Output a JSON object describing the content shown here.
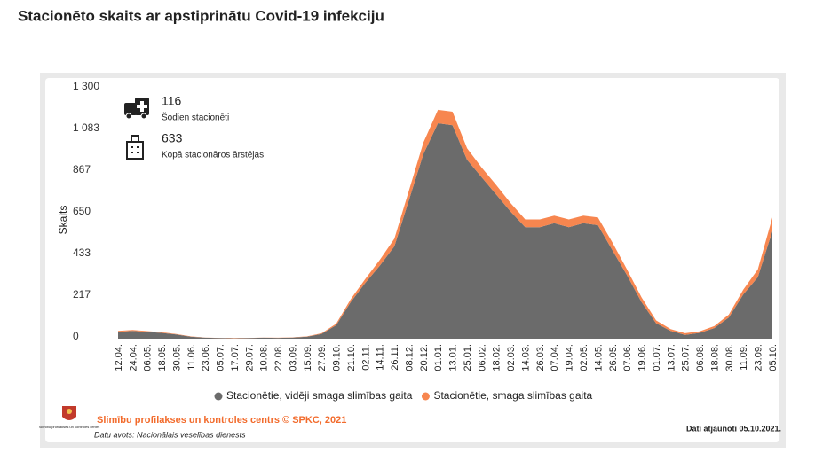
{
  "title": "Stacionēto skaits ar apstiprinātu Covid-19 infekciju",
  "info": [
    {
      "value": "116",
      "label": "Šodien stacionēti"
    },
    {
      "value": "633",
      "label": "Kopā stacionāros ārstējas"
    }
  ],
  "footer": {
    "org": "Slimību profilakses un kontroles centrs © SPKC, 2021",
    "logo_text": "Slimību profilakses un kontroles centrs",
    "source": "Datu avots: Nacionālais veselības dienests",
    "updated": "Dati atjaunoti 05.10.2021."
  },
  "chart_data": {
    "type": "area",
    "stacked": true,
    "y_label": "Skaits",
    "grid": false,
    "categories": [
      "12.04.",
      "24.04.",
      "06.05.",
      "18.05.",
      "30.05.",
      "11.06.",
      "23.06.",
      "05.07.",
      "17.07.",
      "29.07.",
      "10.08.",
      "22.08.",
      "03.09.",
      "15.09.",
      "27.09.",
      "09.10.",
      "21.10.",
      "02.11.",
      "14.11.",
      "26.11.",
      "08.12.",
      "20.12.",
      "01.01.",
      "13.01.",
      "25.01.",
      "06.02.",
      "18.02.",
      "02.03.",
      "14.03.",
      "26.03.",
      "07.04.",
      "19.04.",
      "02.05.",
      "14.05.",
      "26.05.",
      "07.06.",
      "19.06.",
      "01.07.",
      "13.07.",
      "25.07.",
      "06.08.",
      "18.08.",
      "30.08.",
      "11.09.",
      "23.09.",
      "05.10."
    ],
    "series": [
      {
        "name": "Stacionētie, vidēji smaga slimības gaita",
        "color": "#6b6b6b",
        "values": [
          35,
          40,
          35,
          30,
          22,
          10,
          5,
          3,
          2,
          3,
          5,
          4,
          6,
          10,
          25,
          70,
          190,
          290,
          380,
          480,
          720,
          960,
          1120,
          1110,
          930,
          840,
          750,
          660,
          580,
          580,
          600,
          580,
          600,
          590,
          460,
          330,
          190,
          80,
          40,
          20,
          30,
          55,
          110,
          230,
          320,
          560
        ]
      },
      {
        "name": "Stacionētie, smaga slimības gaita",
        "color": "#f7864f",
        "values": [
          5,
          5,
          4,
          3,
          2,
          2,
          1,
          1,
          1,
          1,
          1,
          1,
          1,
          2,
          3,
          8,
          15,
          20,
          30,
          40,
          50,
          60,
          70,
          70,
          60,
          50,
          50,
          45,
          40,
          40,
          40,
          40,
          40,
          40,
          40,
          30,
          25,
          15,
          10,
          8,
          8,
          10,
          15,
          25,
          40,
          70
        ]
      }
    ],
    "ylim": [
      0,
      1300
    ],
    "yticks": [
      0,
      217,
      433,
      650,
      867,
      {
        "value": 1083,
        "label": "1 083"
      },
      {
        "value": 1300,
        "label": "1 300"
      }
    ]
  }
}
